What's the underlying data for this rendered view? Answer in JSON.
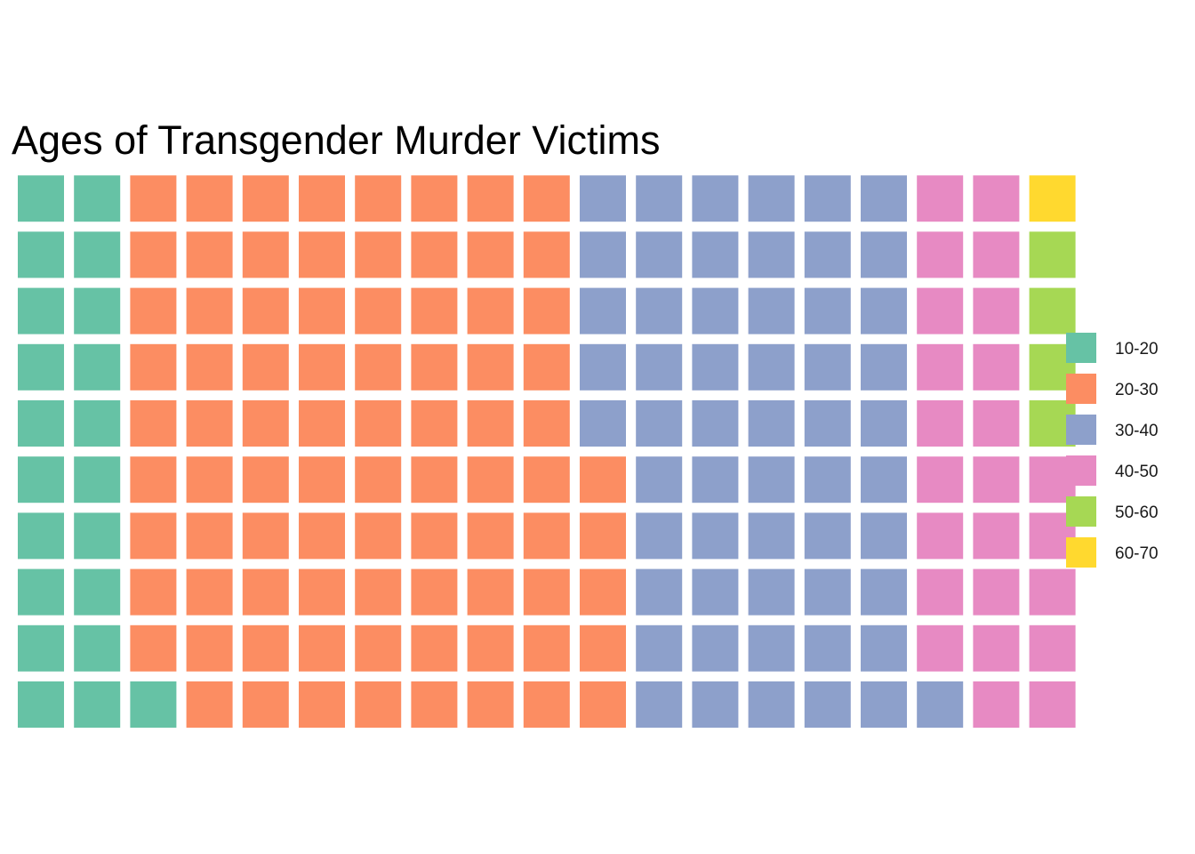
{
  "chart_data": {
    "type": "waffle",
    "title": "Ages of Transgender Murder Victims",
    "rows": 10,
    "fill_order": "column-major, bottom-to-top, left-to-right",
    "legend_position": "right",
    "grid": false,
    "series": [
      {
        "name": "10-20",
        "value": 21,
        "color": "#66C2A5"
      },
      {
        "name": "20-30",
        "value": 84,
        "color": "#FC8D62"
      },
      {
        "name": "30-40",
        "value": 56,
        "color": "#8DA0CB"
      },
      {
        "name": "40-50",
        "value": 24,
        "color": "#E78AC3"
      },
      {
        "name": "50-60",
        "value": 4,
        "color": "#A6D854"
      },
      {
        "name": "60-70",
        "value": 1,
        "color": "#FFD92F"
      }
    ]
  }
}
